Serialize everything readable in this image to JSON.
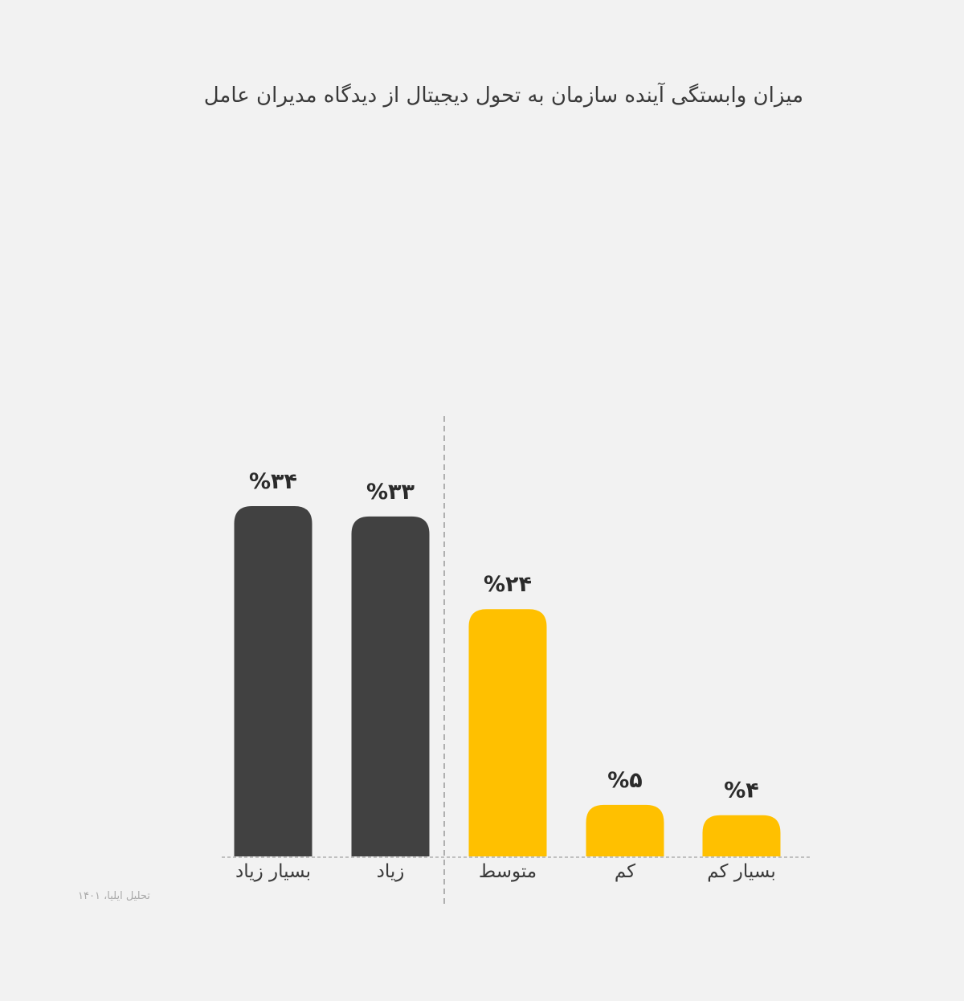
{
  "chart_data": {
    "type": "bar",
    "title": "میزان وابستگی آینده سازمان به تحول دیجیتال از دیدگاه مدیران عامل",
    "categories": [
      "بسیار زیاد",
      "زیاد",
      "متوسط",
      "کم",
      "بسیار کم"
    ],
    "values": [
      34,
      33,
      24,
      5,
      4
    ],
    "value_labels": [
      "%۳۴",
      "%۳۳",
      "%۲۴",
      "%۵",
      "%۴"
    ],
    "series_colors": [
      "#414141",
      "#414141",
      "#ffc000",
      "#ffc000",
      "#ffc000"
    ],
    "colors": {
      "dark": "#414141",
      "accent": "#ffc000",
      "text": "#3a3a3a",
      "gridline": "#b0b0b0"
    },
    "ylim": [
      0,
      34
    ],
    "xlabel": "",
    "ylabel": "",
    "grid": false,
    "divider": "dashed vertical line between 'زیاد' and 'متوسط'"
  },
  "source_note": "تحلیل ایلیا، ۱۴۰۱"
}
